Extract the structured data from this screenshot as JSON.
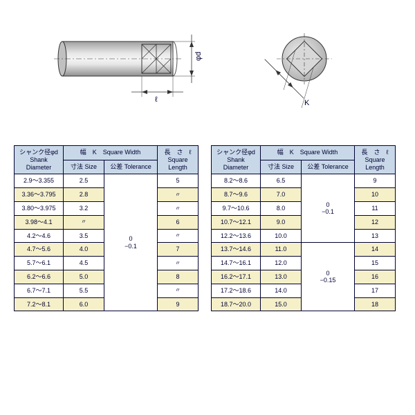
{
  "header_bg": "#c8d8e8",
  "alt_bg": "#f5f0c8",
  "border_color": "#000033",
  "diagram": {
    "side_label_phi_d": "φd",
    "side_label_ell": "ℓ",
    "end_label_K": "K"
  },
  "headers": {
    "shank": "シャンク径φd\nShank\nDiameter",
    "square_width": "幅　K　Square Width",
    "size": "寸法 Size",
    "tolerance": "公差 Tolerance",
    "square_length": "長　さ　ℓ\nSquare\nLength"
  },
  "col_widths": {
    "shank": 62,
    "size": 50,
    "tolerance": 68,
    "length": 50
  },
  "left_table": {
    "tolerance": "0\n−0.1",
    "rows": [
      {
        "shank": "2.9〜3.355",
        "size": "2.5",
        "len": "5"
      },
      {
        "shank": "3.36〜3.795",
        "size": "2.8",
        "len": "〃"
      },
      {
        "shank": "3.80〜3.975",
        "size": "3.2",
        "len": "〃"
      },
      {
        "shank": "3.98〜4.1",
        "size": "〃",
        "len": "6"
      },
      {
        "shank": "4.2〜4.6",
        "size": "3.5",
        "len": "〃"
      },
      {
        "shank": "4.7〜5.6",
        "size": "4.0",
        "len": "7"
      },
      {
        "shank": "5.7〜6.1",
        "size": "4.5",
        "len": "〃"
      },
      {
        "shank": "6.2〜6.6",
        "size": "5.0",
        "len": "8"
      },
      {
        "shank": "6.7〜7.1",
        "size": "5.5",
        "len": "〃"
      },
      {
        "shank": "7.2〜8.1",
        "size": "6.0",
        "len": "9"
      }
    ]
  },
  "right_table": {
    "tolerance_top": "0\n−0.1",
    "tolerance_bottom": "0\n−0.15",
    "split_at": 5,
    "rows": [
      {
        "shank": "8.2〜8.6",
        "size": "6.5",
        "len": "9"
      },
      {
        "shank": "8.7〜9.6",
        "size": "7.0",
        "len": "10"
      },
      {
        "shank": "9.7〜10.6",
        "size": "8.0",
        "len": "11"
      },
      {
        "shank": "10.7〜12.1",
        "size": "9.0",
        "len": "12"
      },
      {
        "shank": "12.2〜13.6",
        "size": "10.0",
        "len": "13"
      },
      {
        "shank": "13.7〜14.6",
        "size": "11.0",
        "len": "14"
      },
      {
        "shank": "14.7〜16.1",
        "size": "12.0",
        "len": "15"
      },
      {
        "shank": "16.2〜17.1",
        "size": "13.0",
        "len": "16"
      },
      {
        "shank": "17.2〜18.6",
        "size": "14.0",
        "len": "17"
      },
      {
        "shank": "18.7〜20.0",
        "size": "15.0",
        "len": "18"
      }
    ]
  }
}
